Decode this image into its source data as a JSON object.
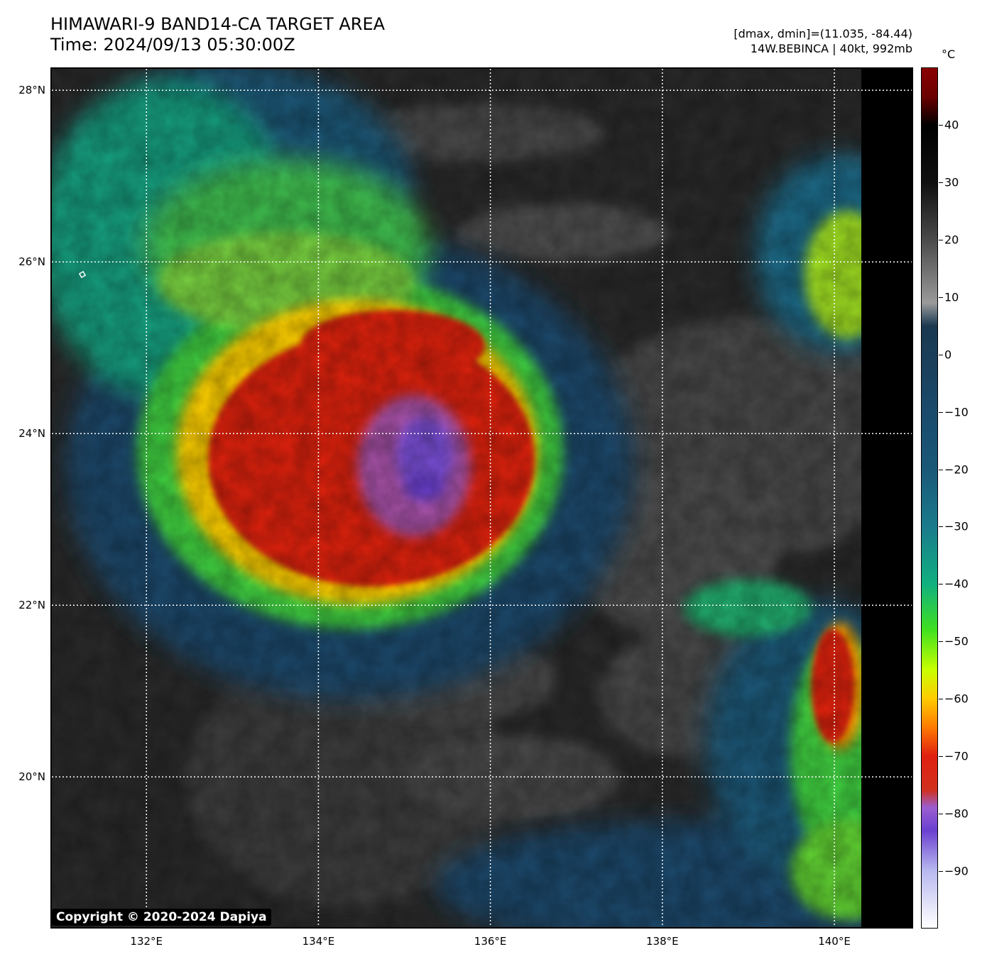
{
  "header": {
    "title_line1": "HIMAWARI-9 BAND14-CA TARGET AREA",
    "title_line2": "Time: 2024/09/13 05:30:00Z",
    "info_line1": "[dmax, dmin]=(11.035, -84.44)",
    "info_line2": "14W.BEBINCA | 40kt, 992mb"
  },
  "map": {
    "lat_labels": [
      "28°N",
      "26°N",
      "24°N",
      "22°N",
      "20°N"
    ],
    "lon_labels": [
      "132°E",
      "134°E",
      "136°E",
      "138°E",
      "140°E"
    ],
    "lat_values": [
      28,
      26,
      24,
      22,
      20
    ],
    "lon_values": [
      132,
      134,
      136,
      138,
      140
    ],
    "lat_range": [
      18.25,
      28.25
    ],
    "lon_range": [
      130.9,
      140.9
    ],
    "gridlines": true,
    "copyright": "Copyright © 2020-2024 Dapiya"
  },
  "colorbar": {
    "unit": "°C",
    "range": [
      -100,
      50
    ],
    "tick_values": [
      40,
      30,
      20,
      10,
      0,
      -10,
      -20,
      -30,
      -40,
      -50,
      -60,
      -70,
      -80,
      -90
    ],
    "tick_labels": [
      "40",
      "30",
      "20",
      "10",
      "0",
      "−10",
      "−20",
      "−30",
      "−40",
      "−50",
      "−60",
      "−70",
      "−80",
      "−90"
    ],
    "stops": [
      {
        "value": -100,
        "color": "#ffffff"
      },
      {
        "value": -90,
        "color": "#b8b8f0"
      },
      {
        "value": -83,
        "color": "#6a40d0"
      },
      {
        "value": -79,
        "color": "#9b5fd0"
      },
      {
        "value": -76,
        "color": "#d03020"
      },
      {
        "value": -70,
        "color": "#e02010"
      },
      {
        "value": -65,
        "color": "#ff7a00"
      },
      {
        "value": -60,
        "color": "#ffcc00"
      },
      {
        "value": -55,
        "color": "#c8ff00"
      },
      {
        "value": -48,
        "color": "#40e020"
      },
      {
        "value": -40,
        "color": "#10b080"
      },
      {
        "value": -30,
        "color": "#1a7a8c"
      },
      {
        "value": -20,
        "color": "#1a5878"
      },
      {
        "value": -10,
        "color": "#1a4a6c"
      },
      {
        "value": 5,
        "color": "#1a3850"
      },
      {
        "value": 9,
        "color": "#9a9a9a"
      },
      {
        "value": 20,
        "color": "#4a4a4a"
      },
      {
        "value": 30,
        "color": "#101010"
      },
      {
        "value": 40,
        "color": "#000000"
      },
      {
        "value": 45,
        "color": "#6a0000"
      },
      {
        "value": 50,
        "color": "#8b0000"
      }
    ]
  }
}
